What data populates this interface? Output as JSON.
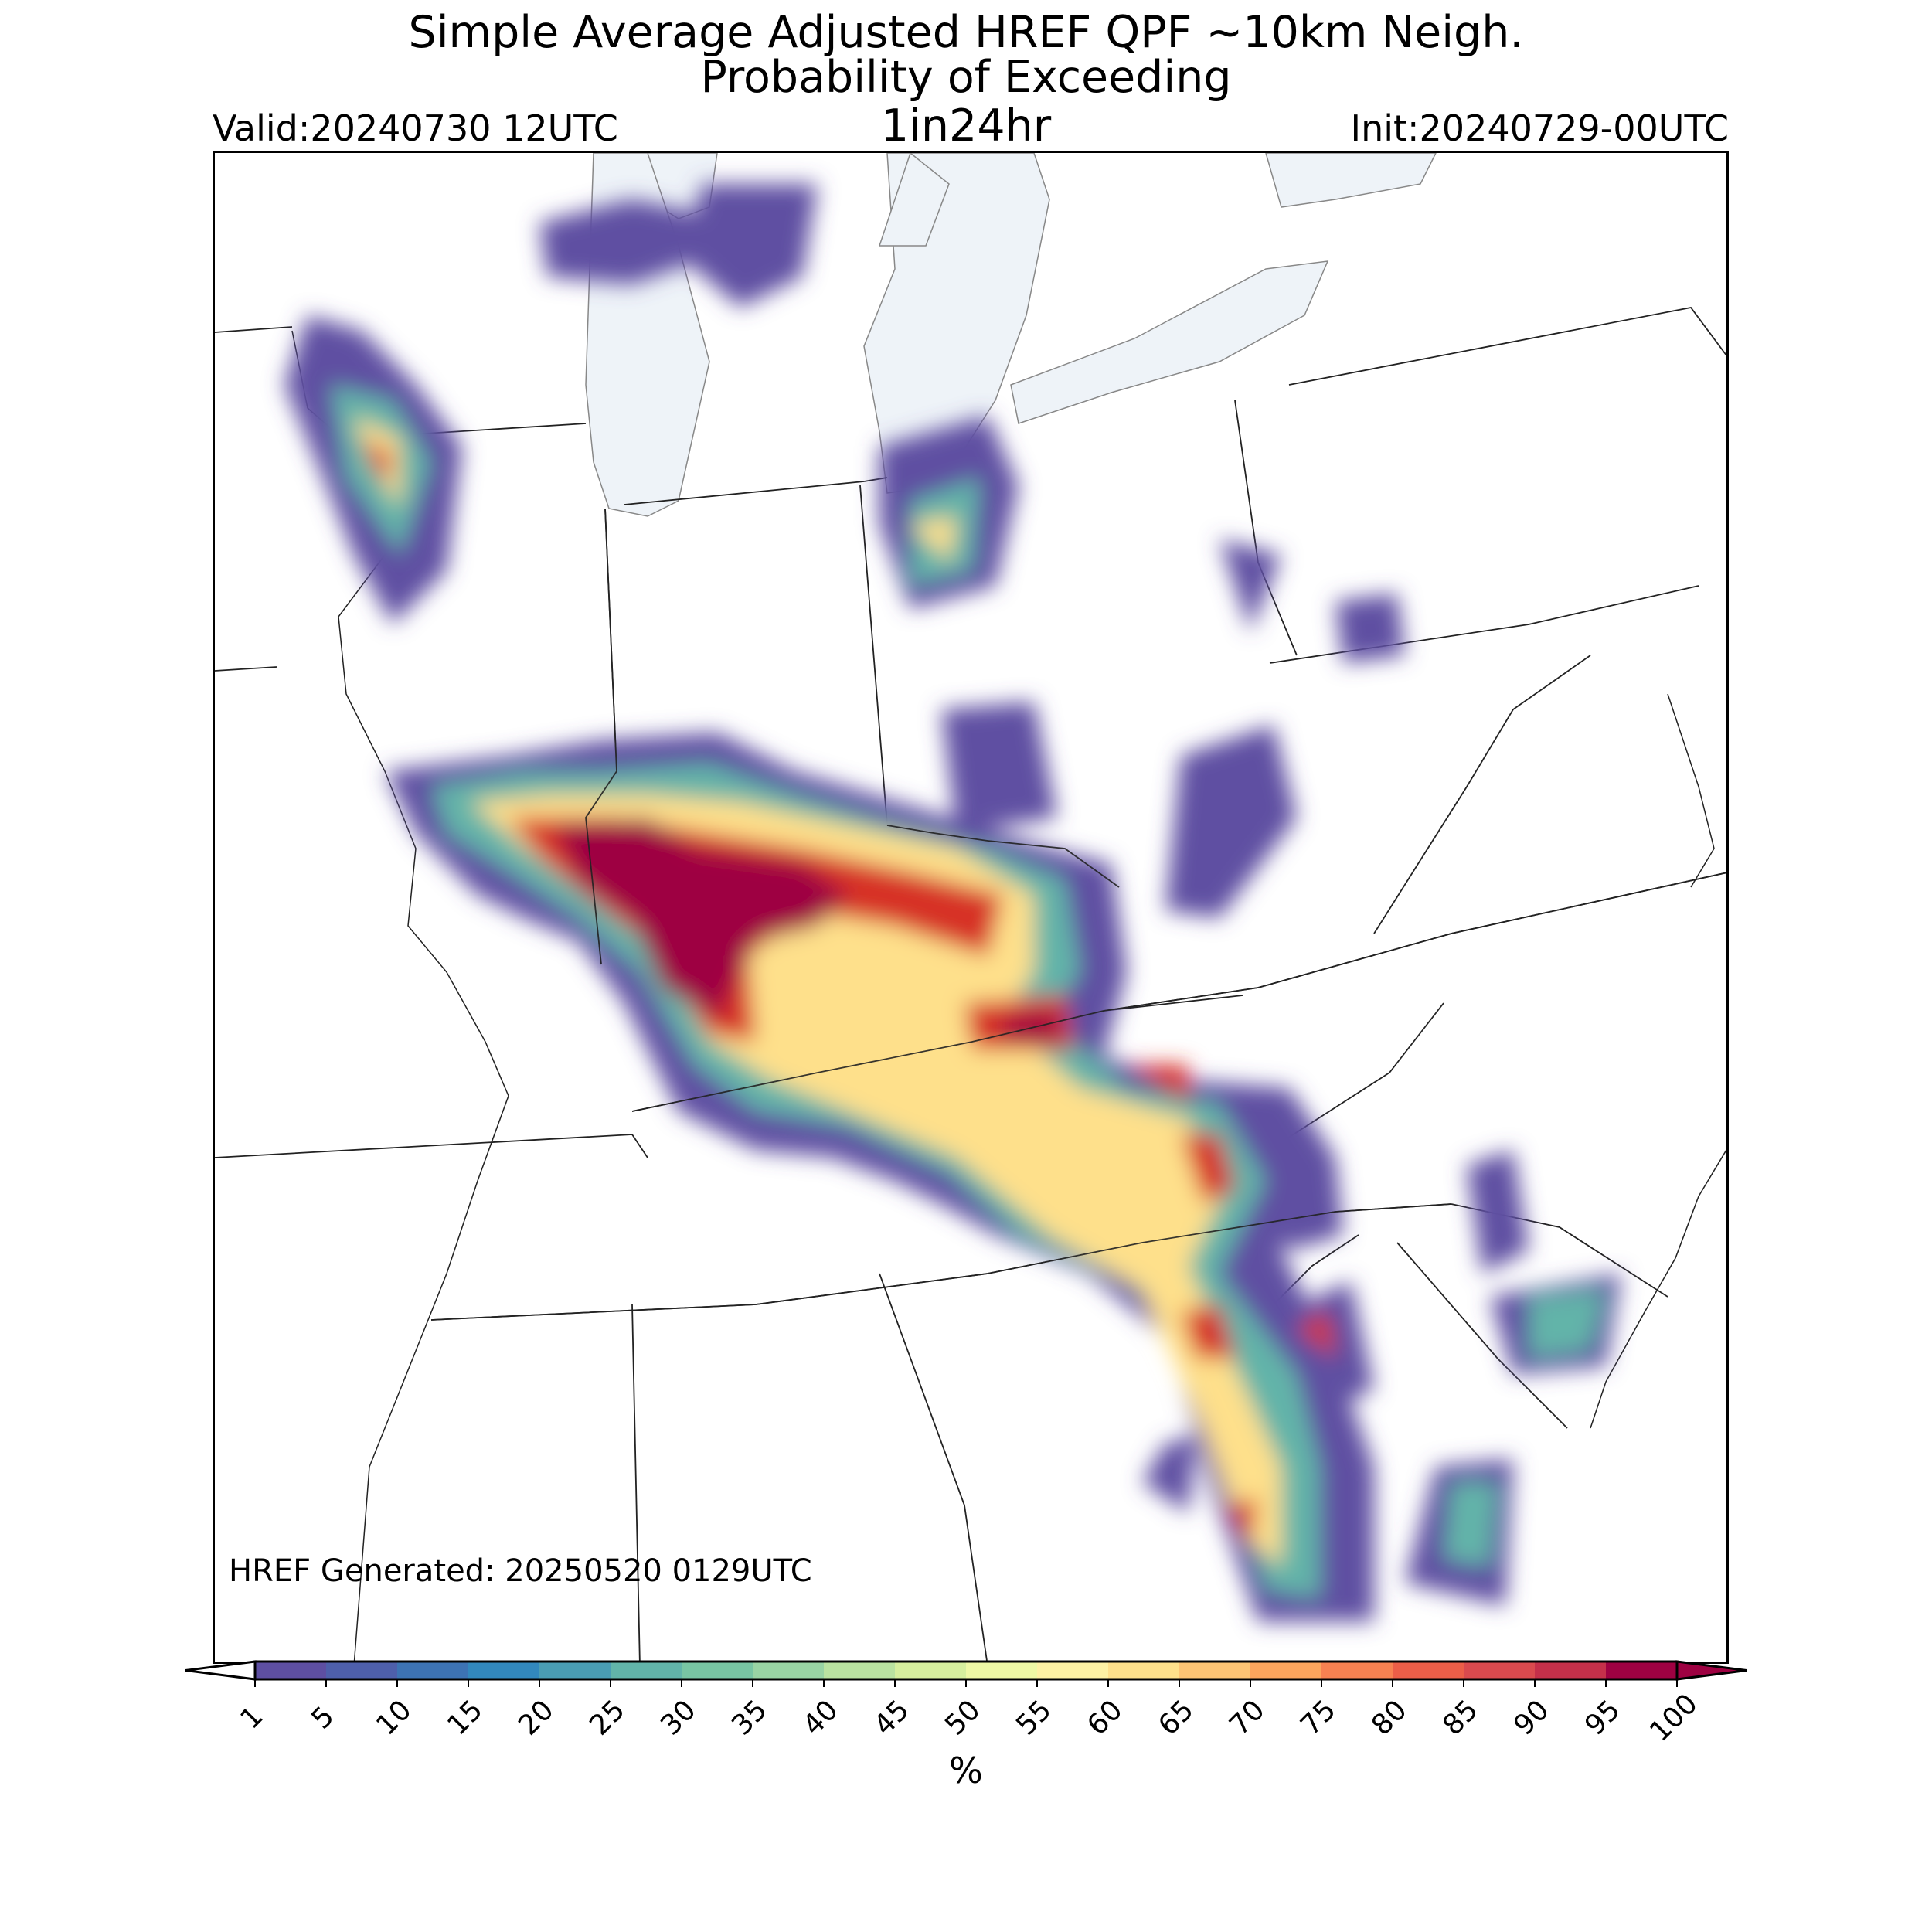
{
  "header": {
    "title_line1": "Simple Average Adjusted HREF QPF ~10km Neigh.",
    "title_line2": "Probability of Exceeding",
    "subtitle": "1in24hr",
    "valid": "Valid:20240730 12UTC",
    "init": "Init:20240729-00UTC"
  },
  "annotation": {
    "generated": "HREF Generated: 20250520 0129UTC"
  },
  "colorbar": {
    "unit_label": "%",
    "ticks": [
      "1",
      "5",
      "10",
      "15",
      "20",
      "25",
      "30",
      "35",
      "40",
      "45",
      "50",
      "55",
      "60",
      "65",
      "70",
      "75",
      "80",
      "85",
      "90",
      "95",
      "100"
    ],
    "colors": [
      "#5e4fa2",
      "#4e5fab",
      "#3d73b4",
      "#3288bd",
      "#4a9db4",
      "#62b4a9",
      "#78c5a3",
      "#99d4a4",
      "#bae3a1",
      "#d6ef9e",
      "#eef8a5",
      "#fdf1a4",
      "#fee08b",
      "#fdc474",
      "#fca55d",
      "#f78151",
      "#ec5e48",
      "#da4a4e",
      "#c5304a",
      "#9e0142"
    ],
    "extend": "both"
  },
  "map": {
    "type": "probability-field",
    "colors": {
      "lakes": "#eef3f8",
      "borders": "#222222"
    }
  }
}
